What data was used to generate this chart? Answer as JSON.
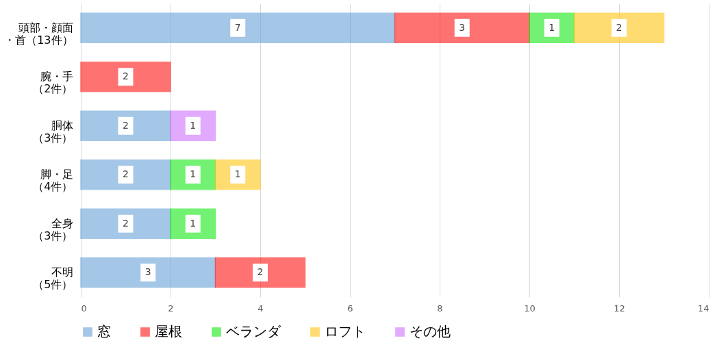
{
  "chart_data": {
    "type": "bar",
    "orientation": "horizontal",
    "stacked": true,
    "data_labels": true,
    "categories": [
      "頭部・顔面・首（13件）",
      "腕・手（2件）",
      "胴体（3件）",
      "脚・足（4件）",
      "全身（3件）",
      "不明（5件）"
    ],
    "series": [
      {
        "name": "窓",
        "color": "#5b9bd5",
        "values": [
          7,
          null,
          2,
          2,
          2,
          3
        ]
      },
      {
        "name": "屋根",
        "color": "#ff0000",
        "values": [
          3,
          2,
          null,
          null,
          null,
          2
        ]
      },
      {
        "name": "ベランダ",
        "color": "#00e600",
        "values": [
          1,
          null,
          null,
          1,
          1,
          null
        ]
      },
      {
        "name": "ロフト",
        "color": "#ffc000",
        "values": [
          2,
          null,
          null,
          1,
          null,
          null
        ]
      },
      {
        "name": "その他",
        "color": "#cc66ff",
        "values": [
          null,
          null,
          1,
          null,
          null,
          null
        ]
      }
    ],
    "xlim": [
      0,
      14
    ],
    "xticks": [
      0,
      2,
      4,
      6,
      8,
      10,
      12,
      14
    ],
    "grid": "x",
    "legend": "bottom"
  }
}
